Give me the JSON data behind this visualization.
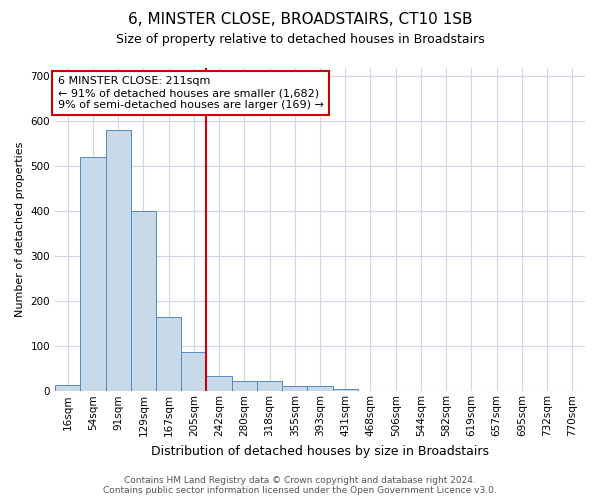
{
  "title": "6, MINSTER CLOSE, BROADSTAIRS, CT10 1SB",
  "subtitle": "Size of property relative to detached houses in Broadstairs",
  "xlabel": "Distribution of detached houses by size in Broadstairs",
  "ylabel": "Number of detached properties",
  "bar_color": "#c8daea",
  "bar_edge_color": "#5588bb",
  "vline_color": "#cc0000",
  "vline_x_index": 5,
  "annotation_text": "6 MINSTER CLOSE: 211sqm\n← 91% of detached houses are smaller (1,682)\n9% of semi-detached houses are larger (169) →",
  "annotation_box_color": "#cc0000",
  "categories": [
    "16sqm",
    "54sqm",
    "91sqm",
    "129sqm",
    "167sqm",
    "205sqm",
    "242sqm",
    "280sqm",
    "318sqm",
    "355sqm",
    "393sqm",
    "431sqm",
    "468sqm",
    "506sqm",
    "544sqm",
    "582sqm",
    "619sqm",
    "657sqm",
    "695sqm",
    "732sqm",
    "770sqm"
  ],
  "bar_heights": [
    15,
    520,
    580,
    400,
    165,
    88,
    33,
    22,
    22,
    12,
    12,
    5,
    0,
    0,
    0,
    0,
    0,
    0,
    0,
    0,
    0
  ],
  "ylim": [
    0,
    720
  ],
  "yticks": [
    0,
    100,
    200,
    300,
    400,
    500,
    600,
    700
  ],
  "footer_text": "Contains HM Land Registry data © Crown copyright and database right 2024.\nContains public sector information licensed under the Open Government Licence v3.0.",
  "background_color": "#ffffff",
  "plot_bg_color": "#ffffff",
  "grid_color": "#d0d8e8",
  "title_fontsize": 11,
  "subtitle_fontsize": 9,
  "xlabel_fontsize": 9,
  "ylabel_fontsize": 8,
  "tick_fontsize": 7.5,
  "footer_fontsize": 6.5
}
